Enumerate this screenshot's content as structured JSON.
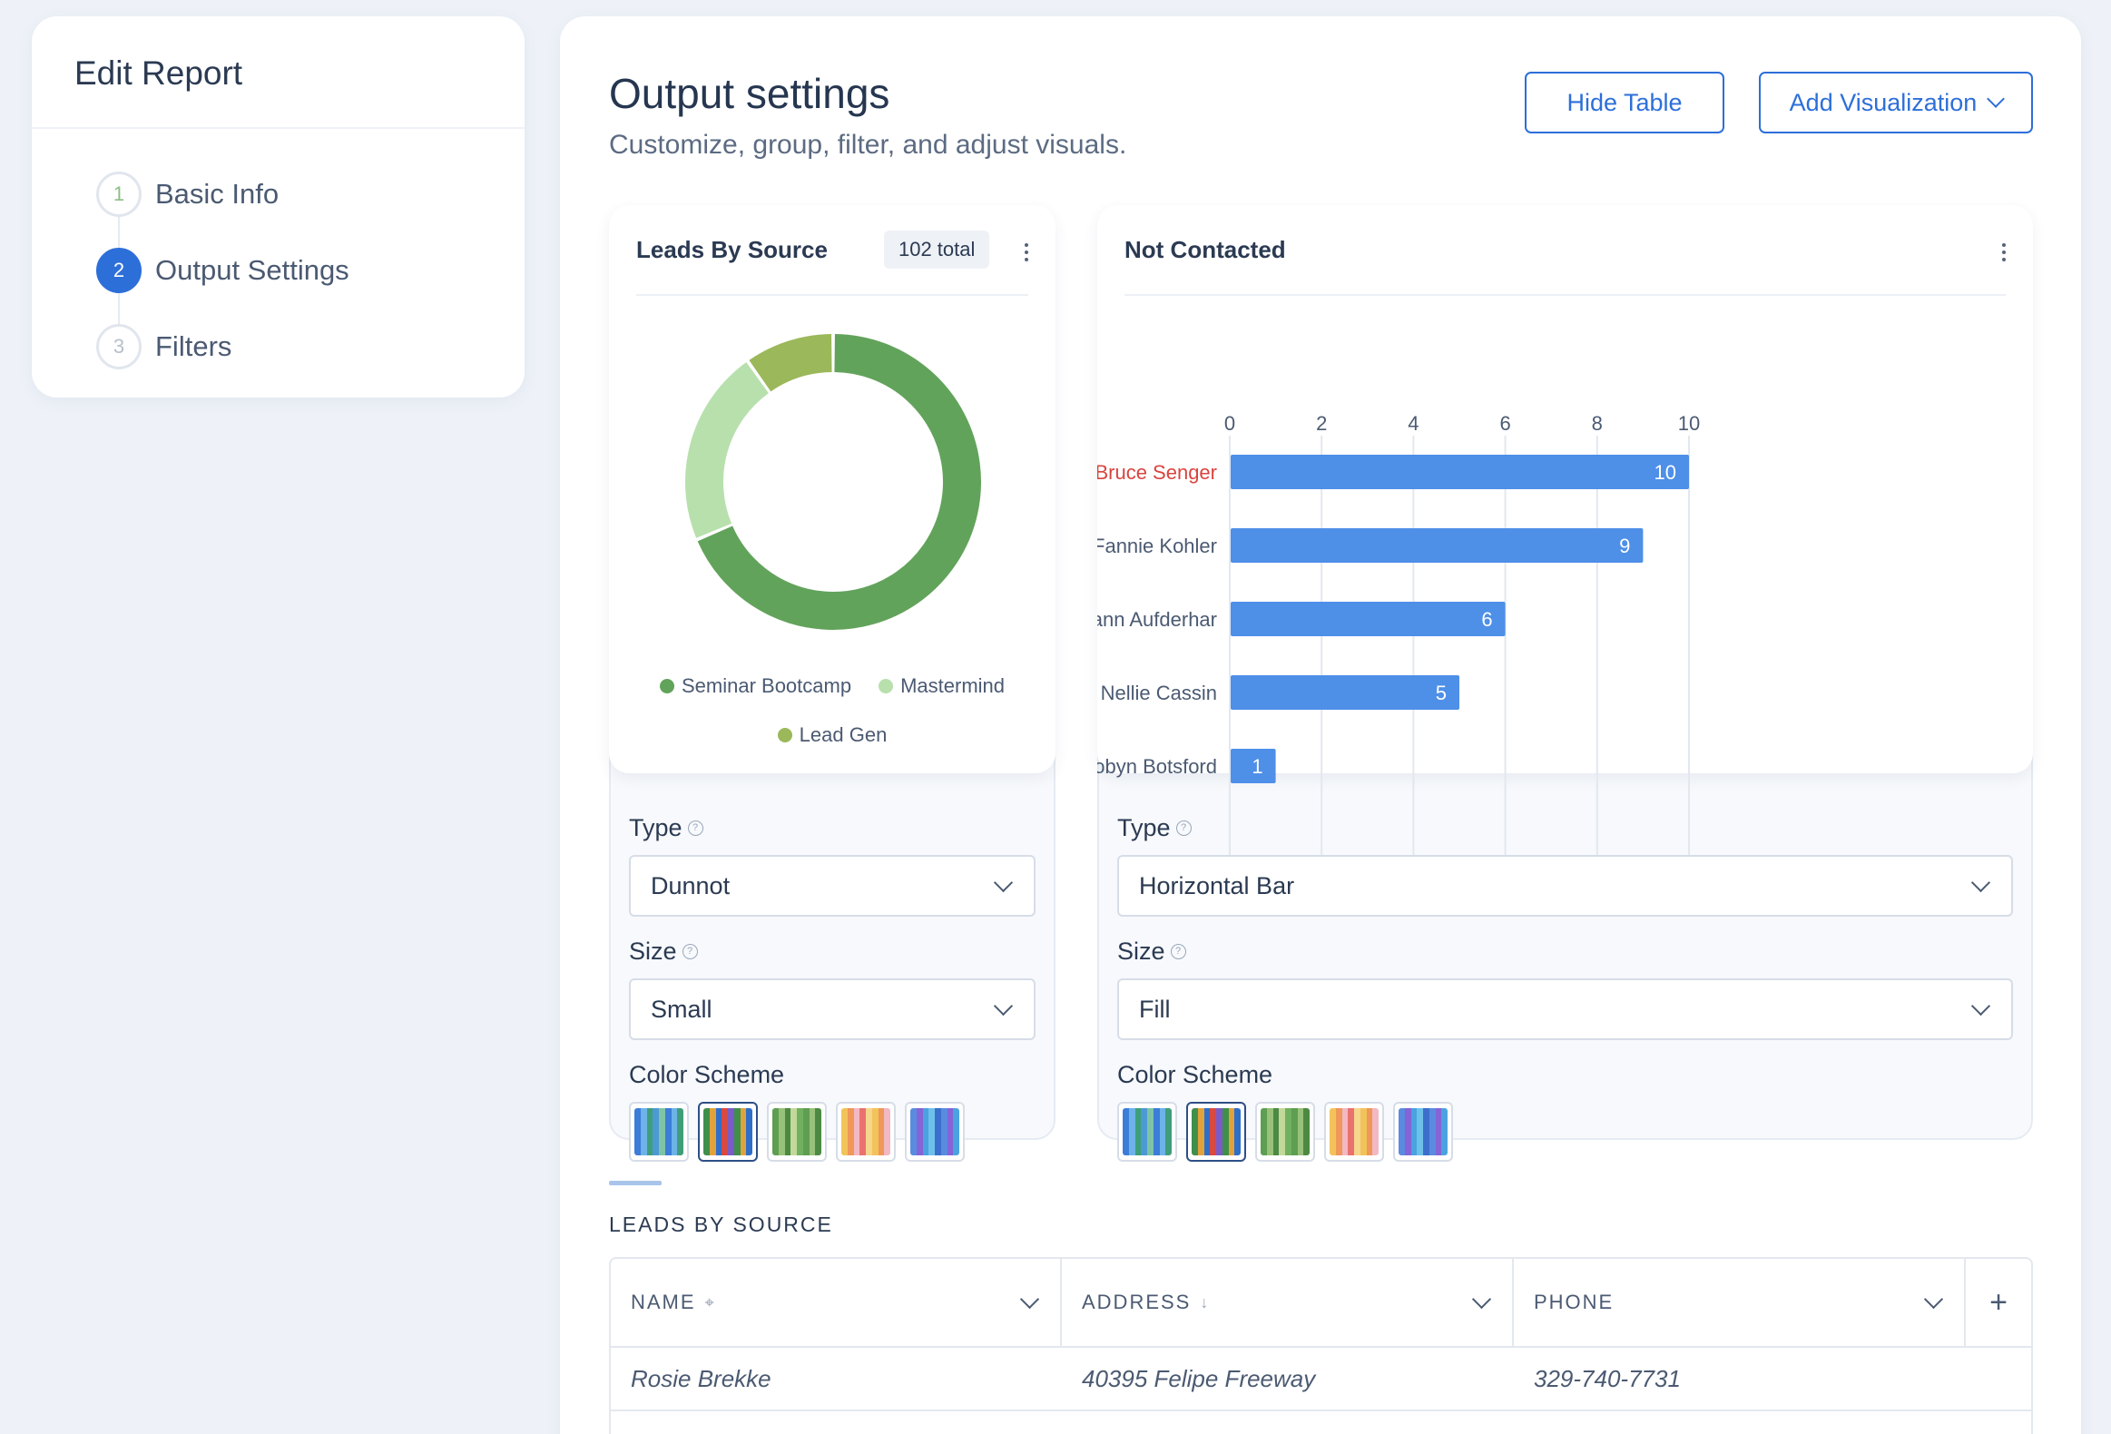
{
  "sidebar": {
    "title": "Edit Report",
    "steps": [
      {
        "number": "1",
        "label": "Basic Info",
        "state": "done"
      },
      {
        "number": "2",
        "label": "Output Settings",
        "state": "active"
      },
      {
        "number": "3",
        "label": "Filters",
        "state": "pending"
      }
    ]
  },
  "header": {
    "title": "Output settings",
    "subtitle": "Customize, group, filter, and adjust visuals.",
    "hide_table_label": "Hide Table",
    "add_visualization_label": "Add Visualization"
  },
  "cards": {
    "leads_by_source": {
      "title": "Leads By Source",
      "badge": "102 total",
      "type_label": "Type",
      "type_value": "Dunnot",
      "size_label": "Size",
      "size_value": "Small",
      "color_scheme_label": "Color Scheme",
      "selected_scheme": 1
    },
    "not_contacted": {
      "title": "Not Contacted",
      "type_label": "Type",
      "type_value": "Horizontal Bar",
      "size_label": "Size",
      "size_value": "Fill",
      "color_scheme_label": "Color Scheme",
      "selected_scheme": 1
    }
  },
  "chart_data": [
    {
      "type": "pie",
      "variant": "donut",
      "title": "Leads By Source",
      "categories": [
        "Seminar Bootcamp",
        "Mastermind",
        "Lead Gen"
      ],
      "values": [
        70,
        22,
        10
      ],
      "colors": [
        "#62a35b",
        "#b7e0ad",
        "#9bb85a"
      ],
      "legend": "bottom"
    },
    {
      "type": "bar",
      "orientation": "horizontal",
      "title": "Not Contacted",
      "categories": [
        "Bruce Senger",
        "Fannie Kohler",
        "Joann Aufderhar",
        "Nellie Cassin",
        "Robyn Botsford"
      ],
      "values": [
        10,
        9,
        6,
        5,
        1
      ],
      "xlim": [
        0,
        10
      ],
      "xticks": [
        "0",
        "2",
        "4",
        "6",
        "8",
        "10"
      ],
      "bar_color": "#4e8fe8",
      "highlight_category_color": "#d9443f",
      "grid": true,
      "axis_position": "top"
    }
  ],
  "color_schemes": [
    [
      "#3b7dd8",
      "#6db3e8",
      "#3f9e7a",
      "#4c9ad4",
      "#7fc3a6"
    ],
    [
      "#3f8f4b",
      "#e2a23b",
      "#2e6fc9",
      "#d9493f",
      "#7a5bc7"
    ],
    [
      "#5e9e52",
      "#98c17a",
      "#4c8a43",
      "#c2d99b",
      "#71b05f"
    ],
    [
      "#f2c35a",
      "#f0975a",
      "#f2b8c4",
      "#e9726f",
      "#f6d58d"
    ],
    [
      "#5b8be0",
      "#8464d6",
      "#4aa3e0",
      "#6ec0ea",
      "#3b6fcb"
    ]
  ],
  "table": {
    "section_title": "LEADS BY SOURCE",
    "columns": [
      {
        "label": "NAME",
        "icon": "pin-icon"
      },
      {
        "label": "ADDRESS",
        "icon": "sort-down-icon"
      },
      {
        "label": "PHONE",
        "icon": ""
      }
    ],
    "add_column_symbol": "+",
    "rows": [
      [
        "Rosie Brekke",
        "40395 Felipe Freeway",
        "329-740-7731"
      ]
    ]
  }
}
